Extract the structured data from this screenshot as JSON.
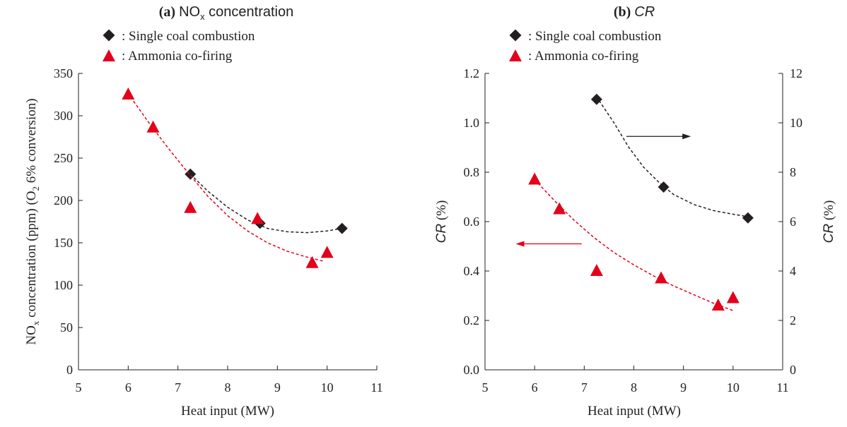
{
  "colors": {
    "coal": "#231f20",
    "ammonia": "#e3001b"
  },
  "legend": {
    "coal": ": Single coal combustion",
    "ammonia": ": Ammonia co-firing"
  },
  "chart_data": [
    {
      "type": "scatter",
      "panel": "(a)",
      "title_a": "NO",
      "title_sub": "x",
      "title_b": " concentration",
      "xlabel": "Heat input  (MW)",
      "ylabel_main": "NO",
      "ylabel_sub": "x",
      "ylabel_rest": " concentration  (ppm) (O",
      "ylabel_sub2": "2",
      "ylabel_end": " 6% conversion)",
      "xlim": [
        5,
        11
      ],
      "ylim": [
        0,
        350
      ],
      "xticks": [
        "5",
        "6",
        "7",
        "8",
        "9",
        "10",
        "11"
      ],
      "yticks": [
        "0",
        "50",
        "100",
        "150",
        "200",
        "250",
        "300",
        "350"
      ],
      "series": [
        {
          "key": "coal",
          "marker": "diamond",
          "x": [
            7.25,
            8.65,
            10.3
          ],
          "y": [
            231,
            173,
            167
          ],
          "trend_x": [
            7.25,
            7.6,
            8.0,
            8.4,
            8.8,
            9.2,
            9.6,
            10.0,
            10.3
          ],
          "trend_y": [
            231,
            211,
            192,
            177,
            167,
            163,
            162,
            164,
            167
          ]
        },
        {
          "key": "ammonia",
          "marker": "triangle",
          "x": [
            6.0,
            6.5,
            7.25,
            8.6,
            9.7,
            10.0
          ],
          "y": [
            325,
            286,
            191,
            178,
            126,
            138
          ],
          "trend_x": [
            6.05,
            6.4,
            6.8,
            7.2,
            7.6,
            8.0,
            8.4,
            8.8,
            9.2,
            9.6,
            9.95
          ],
          "trend_y": [
            322,
            293,
            262,
            233,
            205,
            182,
            164,
            150,
            140,
            133,
            128
          ]
        }
      ]
    },
    {
      "type": "scatter",
      "panel": "(b)",
      "title_it": "CR",
      "xlabel": "Heat input  (MW)",
      "ylabel_it": "CR",
      "ylabel_unit": "  (%)",
      "xlim": [
        5,
        11
      ],
      "ylim": [
        0,
        1.2
      ],
      "ylim_right": [
        0,
        12
      ],
      "xticks": [
        "5",
        "6",
        "7",
        "8",
        "9",
        "10",
        "11"
      ],
      "yticks": [
        "0.0",
        "0.2",
        "0.4",
        "0.6",
        "0.8",
        "1.0",
        "1.2"
      ],
      "yticks_right": [
        "0",
        "2",
        "4",
        "6",
        "8",
        "10",
        "12"
      ],
      "series": [
        {
          "key": "coal",
          "marker": "diamond",
          "axis": "right",
          "x": [
            7.25,
            8.6,
            10.3
          ],
          "y": [
            10.95,
            7.4,
            6.15
          ],
          "trend_x": [
            7.3,
            7.6,
            7.9,
            8.2,
            8.5,
            8.8,
            9.2,
            9.6,
            10.0,
            10.3
          ],
          "trend_y": [
            10.9,
            10.0,
            9.0,
            8.2,
            7.6,
            7.1,
            6.7,
            6.45,
            6.3,
            6.2
          ]
        },
        {
          "key": "ammonia",
          "marker": "triangle",
          "axis": "left",
          "x": [
            6.0,
            6.5,
            7.25,
            8.55,
            9.7,
            10.0
          ],
          "y": [
            0.77,
            0.65,
            0.4,
            0.37,
            0.26,
            0.29
          ],
          "trend_x": [
            6.0,
            6.4,
            6.8,
            7.2,
            7.6,
            8.0,
            8.4,
            8.8,
            9.2,
            9.6,
            10.0
          ],
          "trend_y": [
            0.77,
            0.685,
            0.605,
            0.535,
            0.475,
            0.425,
            0.38,
            0.34,
            0.305,
            0.27,
            0.24
          ]
        }
      ]
    }
  ]
}
